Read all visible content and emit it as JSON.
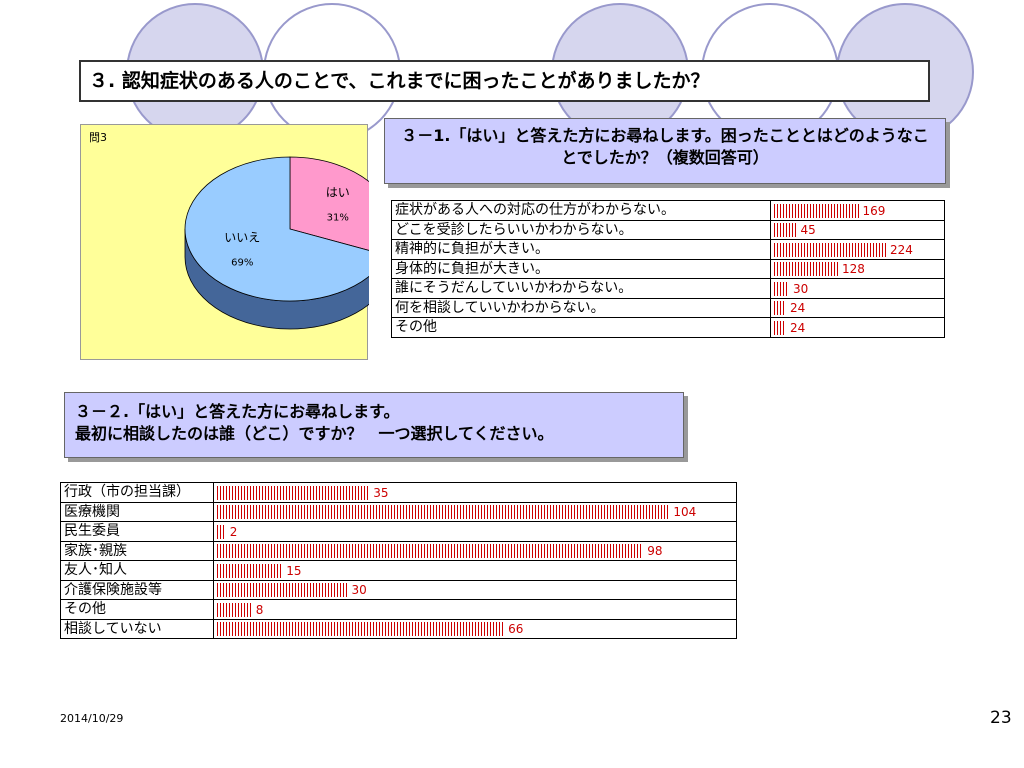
{
  "title": "３. 認知症状のある人のことで、これまでに困ったことがありましたか？",
  "chart_data": [
    {
      "type": "pie",
      "title": "問3",
      "slices": [
        {
          "label": "はい",
          "percent_label": "31%",
          "value": 31,
          "color": "#ff99cc"
        },
        {
          "label": "いいえ",
          "percent_label": "69%",
          "value": 69,
          "color": "#99ccff"
        }
      ]
    },
    {
      "type": "bar",
      "question": "３－1.「はい」と答えた方にお尋ねします。困ったこととはどのようなことでしたか？（複数回答可）",
      "rows": [
        {
          "label": "症状がある人への対応の仕方がわからない。",
          "value": 169
        },
        {
          "label": "どこを受診したらいいかわからない。",
          "value": 45
        },
        {
          "label": "精神的に負担が大きい。",
          "value": 224
        },
        {
          "label": "身体的に負担が大きい。",
          "value": 128
        },
        {
          "label": "誰にそうだんしていいかわからない。",
          "value": 30
        },
        {
          "label": "何を相談していいかわからない。",
          "value": 24
        },
        {
          "label": "その他",
          "value": 24
        }
      ],
      "bar_color": "#cc0000"
    },
    {
      "type": "bar",
      "question_line1": "３－２.「はい」と答えた方にお尋ねします。",
      "question_line2": "最初に相談したのは誰（どこ）ですか？　一つ選択してください。",
      "rows": [
        {
          "label": "行政（市の担当課）",
          "value": 35
        },
        {
          "label": "医療機関",
          "value": 104
        },
        {
          "label": "民生委員",
          "value": 2
        },
        {
          "label": "家族･親族",
          "value": 98
        },
        {
          "label": "友人･知人",
          "value": 15
        },
        {
          "label": "介護保険施設等",
          "value": 30
        },
        {
          "label": "その他",
          "value": 8
        },
        {
          "label": "相談していない",
          "value": 66
        }
      ],
      "bar_color": "#cc0000"
    }
  ],
  "footer": {
    "date": "2014/10/29",
    "page": "23"
  },
  "theme": {
    "circle_fill": "#ccccee",
    "circle_stroke": "#9999cc"
  }
}
